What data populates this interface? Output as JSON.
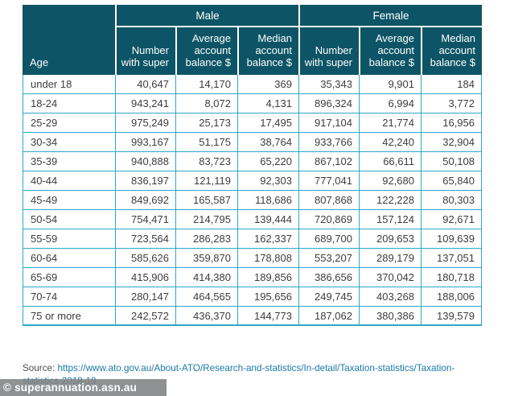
{
  "colors": {
    "header_background": "#0d5466",
    "header_text": "#ffffff",
    "table_border": "#2da7c8",
    "cell_text": "#3d3d3d",
    "link_color": "#1d7aa8",
    "source_text": "#4f4f4f",
    "watermark_background": "#808384",
    "watermark_text": "#ffffff"
  },
  "table": {
    "age_header": "Age",
    "groups": [
      {
        "label": "Male"
      },
      {
        "label": "Female"
      }
    ],
    "sub_headers": [
      "Number with super",
      "Average account balance $",
      "Median account balance $",
      "Number with super",
      "Average account balance $",
      "Median account balance $"
    ],
    "rows": [
      {
        "age": "under 18",
        "values": [
          "40,647",
          "14,170",
          "369",
          "35,343",
          "9,901",
          "184"
        ]
      },
      {
        "age": "18-24",
        "values": [
          "943,241",
          "8,072",
          "4,131",
          "896,324",
          "6,994",
          "3,772"
        ]
      },
      {
        "age": "25-29",
        "values": [
          "975,249",
          "25,173",
          "17,495",
          "917,104",
          "21,774",
          "16,956"
        ]
      },
      {
        "age": "30-34",
        "values": [
          "993,167",
          "51,175",
          "38,764",
          "933,766",
          "42,240",
          "32,904"
        ]
      },
      {
        "age": "35-39",
        "values": [
          "940,888",
          "83,723",
          "65,220",
          "867,102",
          "66,611",
          "50,108"
        ]
      },
      {
        "age": "40-44",
        "values": [
          "836,197",
          "121,119",
          "92,303",
          "777,041",
          "92,680",
          "65,840"
        ]
      },
      {
        "age": "45-49",
        "values": [
          "849,692",
          "165,587",
          "118,686",
          "807,868",
          "122,228",
          "80,303"
        ]
      },
      {
        "age": "50-54",
        "values": [
          "754,471",
          "214,795",
          "139,444",
          "720,869",
          "157,124",
          "92,671"
        ]
      },
      {
        "age": "55-59",
        "values": [
          "723,564",
          "286,283",
          "162,337",
          "689,700",
          "209,653",
          "109,639"
        ]
      },
      {
        "age": "60-64",
        "values": [
          "585,626",
          "359,870",
          "178,808",
          "553,207",
          "289,179",
          "137,051"
        ]
      },
      {
        "age": "65-69",
        "values": [
          "415,906",
          "414,380",
          "189,856",
          "386,656",
          "370,042",
          "180,718"
        ]
      },
      {
        "age": "70-74",
        "values": [
          "280,147",
          "464,565",
          "195,656",
          "249,745",
          "403,268",
          "188,006"
        ]
      },
      {
        "age": "75 or more",
        "values": [
          "242,572",
          "436,370",
          "144,773",
          "187,062",
          "380,386",
          "139,579"
        ]
      }
    ]
  },
  "footer": {
    "source_label": "Source:",
    "source_url_line1": "https://www.ato.gov.au/About-ATO/Research-and-statistics/In-detail/Taxation-statistics/Taxation-",
    "source_url_line2": "statistics-2018-19"
  },
  "watermark": "© superannuation.asn.au",
  "chart_data": {
    "type": "table",
    "title": "",
    "column_groups": [
      "Male",
      "Female"
    ],
    "columns": [
      "Age",
      "Male Number with super",
      "Male Average account balance $",
      "Male Median account balance $",
      "Female Number with super",
      "Female Average account balance $",
      "Female Median account balance $"
    ],
    "rows": [
      [
        "under 18",
        40647,
        14170,
        369,
        35343,
        9901,
        184
      ],
      [
        "18-24",
        943241,
        8072,
        4131,
        896324,
        6994,
        3772
      ],
      [
        "25-29",
        975249,
        25173,
        17495,
        917104,
        21774,
        16956
      ],
      [
        "30-34",
        993167,
        51175,
        38764,
        933766,
        42240,
        32904
      ],
      [
        "35-39",
        940888,
        83723,
        65220,
        867102,
        66611,
        50108
      ],
      [
        "40-44",
        836197,
        121119,
        92303,
        777041,
        92680,
        65840
      ],
      [
        "45-49",
        849692,
        165587,
        118686,
        807868,
        122228,
        80303
      ],
      [
        "50-54",
        754471,
        214795,
        139444,
        720869,
        157124,
        92671
      ],
      [
        "55-59",
        723564,
        286283,
        162337,
        689700,
        209653,
        109639
      ],
      [
        "60-64",
        585626,
        359870,
        178808,
        553207,
        289179,
        137051
      ],
      [
        "65-69",
        415906,
        414380,
        189856,
        386656,
        370042,
        180718
      ],
      [
        "70-74",
        280147,
        464565,
        195656,
        249745,
        403268,
        188006
      ],
      [
        "75 or more",
        242572,
        436370,
        144773,
        187062,
        380386,
        139579
      ]
    ],
    "source": "https://www.ato.gov.au/About-ATO/Research-and-statistics/In-detail/Taxation-statistics/Taxation-statistics-2018-19"
  }
}
